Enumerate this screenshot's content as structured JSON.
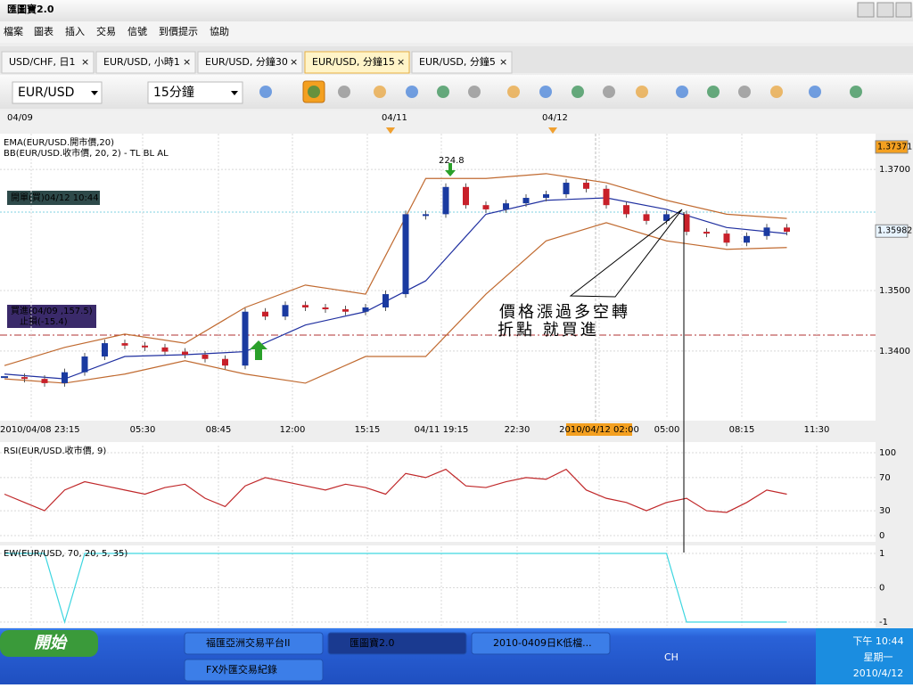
{
  "window": {
    "title": "匯圖寶2.0"
  },
  "menu": [
    "檔案",
    "圖表",
    "插入",
    "交易",
    "信號",
    "到價提示",
    "協助"
  ],
  "tabs": [
    "USD/CHF, 日1",
    "EUR/USD, 小時1",
    "EUR/USD, 分鐘30",
    "EUR/USD, 分鐘15",
    "EUR/USD, 分鐘5"
  ],
  "active_tab": 3,
  "toolbar": {
    "symbol": "EUR/USD",
    "period": "15分鐘"
  },
  "date_strip": [
    "04/09",
    "04/11",
    "04/12"
  ],
  "chart_data": [
    {
      "type": "candlestick",
      "legend": [
        "EMA(EUR/USD.開市價,20)",
        "BB(EUR/USD.收市價, 20, 2) -  TL  BL  AL"
      ],
      "closes": [
        1.3357,
        1.3354,
        1.3347,
        1.3365,
        1.3391,
        1.3413,
        1.3409,
        1.3406,
        1.3399,
        1.3394,
        1.3387,
        1.3376,
        1.3465,
        1.3457,
        1.3476,
        1.3472,
        1.3469,
        1.3465,
        1.3472,
        1.3494,
        1.3626,
        1.3626,
        1.3671,
        1.3641,
        1.3634,
        1.3644,
        1.3653,
        1.3659,
        1.3678,
        1.3668,
        1.3641,
        1.3626,
        1.3615,
        1.3626,
        1.3597,
        1.3594,
        1.3579,
        1.359,
        1.3604,
        1.3597
      ],
      "bands": {
        "x": [
          0,
          3,
          6,
          9,
          12,
          15,
          18,
          21,
          24,
          27,
          30,
          33,
          36,
          39
        ],
        "upper": [
          1.3376,
          1.3406,
          1.3428,
          1.3413,
          1.3472,
          1.3509,
          1.3494,
          1.3685,
          1.3685,
          1.3693,
          1.3678,
          1.3649,
          1.3626,
          1.3619
        ],
        "lower": [
          1.3354,
          1.3347,
          1.3362,
          1.3384,
          1.3362,
          1.3347,
          1.3391,
          1.3391,
          1.3494,
          1.3582,
          1.3612,
          1.3582,
          1.3568,
          1.3571
        ],
        "ema": [
          1.3362,
          1.3354,
          1.3391,
          1.3394,
          1.3399,
          1.3443,
          1.3465,
          1.3516,
          1.3626,
          1.3649,
          1.3653,
          1.3634,
          1.3604,
          1.3594
        ]
      },
      "ylim": [
        1.3288,
        1.3759
      ],
      "yticks": [
        {
          "value": 1.34,
          "label": "1.3400"
        },
        {
          "value": 1.35,
          "label": "1.3500"
        },
        {
          "value": 1.37,
          "label": "1.3700"
        }
      ],
      "price_markers": [
        1.37371,
        1.35982
      ],
      "x_labels": [
        "2010/04/08 23:15",
        "05:30",
        "08:45",
        "12:00",
        "15:15",
        "04/11 19:15",
        "22:30",
        "2010/04/12 02:00",
        "05:00",
        "08:15",
        "11:30"
      ],
      "highlight_x_label": 7,
      "grid": true,
      "annotations": {
        "peak": "224.8",
        "order": "開單(買)04/12 10:44",
        "buy": "買進(04/09 ,157.5)",
        "stop": "止損(-15.4)",
        "note": [
          "價格漲過多空轉",
          "折點 就買進"
        ]
      }
    },
    {
      "type": "line",
      "title": "RSI(EUR/USD.收市價, 9)",
      "color": "#c0282a",
      "values": [
        50,
        40,
        30,
        55,
        65,
        60,
        55,
        50,
        58,
        62,
        45,
        35,
        60,
        70,
        65,
        60,
        55,
        62,
        58,
        50,
        75,
        70,
        80,
        60,
        58,
        65,
        70,
        68,
        80,
        55,
        45,
        40,
        30,
        40,
        45,
        30,
        28,
        40,
        55,
        50
      ],
      "ylim": [
        0,
        100
      ],
      "yticks": [
        0,
        30,
        70,
        100
      ]
    },
    {
      "type": "line",
      "title": "EW(EUR/USD, 70, 20, 5, 35)",
      "color": "#3dd6e0",
      "values": [
        1,
        1,
        1,
        -1,
        1,
        1,
        1,
        1,
        1,
        1,
        1,
        1,
        1,
        1,
        1,
        1,
        1,
        1,
        1,
        1,
        1,
        1,
        1,
        1,
        1,
        1,
        1,
        1,
        1,
        1,
        1,
        1,
        1,
        1,
        -1,
        -1,
        -1,
        -1,
        -1,
        -1
      ],
      "ylim": [
        -1,
        1
      ],
      "yticks": [
        -1,
        0,
        1
      ]
    }
  ],
  "taskbar": {
    "start": "開始",
    "tasks": [
      "福匯亞洲交易平台II",
      "匯圖寶2.0",
      "2010-0409日K低檔...",
      "FX外匯交易紀錄"
    ],
    "lang": "CH",
    "time": "下午 10:44",
    "day": "星期一",
    "date": "2010/4/12"
  }
}
